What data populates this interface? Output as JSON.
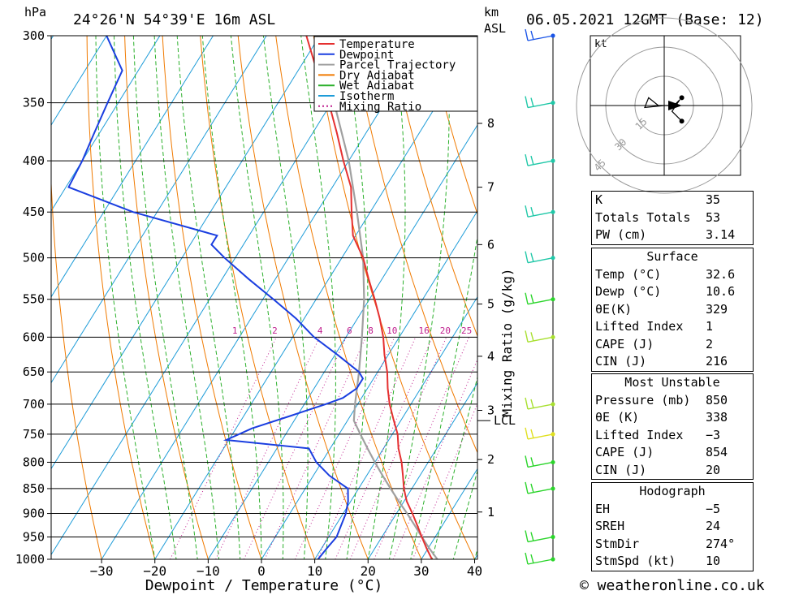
{
  "header": {
    "location": "24°26'N 54°39'E 16m ASL",
    "datetime": "06.05.2021 12GMT (Base: 12)",
    "hpa_label": "hPa",
    "km_label": "km",
    "asl_label": "ASL"
  },
  "footer": {
    "credit": "© weatheronline.co.uk"
  },
  "chart_data": {
    "type": "skew-t",
    "xlabel": "Dewpoint / Temperature (°C)",
    "ylabel": "hPa",
    "mixing_ratio_axis_label": "Mixing Ratio (g/kg)",
    "pressure_levels": [
      300,
      350,
      400,
      450,
      500,
      550,
      600,
      650,
      700,
      750,
      800,
      850,
      900,
      950,
      1000
    ],
    "temperature_ticks": [
      -30,
      -20,
      -10,
      0,
      10,
      20,
      30,
      40
    ],
    "temperature_tick_labels": [
      "−30",
      "−20",
      "−10",
      "0",
      "10",
      "20",
      "30",
      "40"
    ],
    "km_levels": [
      {
        "km": 1,
        "p": 897
      },
      {
        "km": 2,
        "p": 795
      },
      {
        "km": 3,
        "p": 710
      },
      {
        "km": 4,
        "p": 627
      },
      {
        "km": 5,
        "p": 556
      },
      {
        "km": 6,
        "p": 485
      },
      {
        "km": 7,
        "p": 425
      },
      {
        "km": 8,
        "p": 367
      }
    ],
    "lcl": {
      "label": "LCL",
      "p": 727
    },
    "mixing_ratio_labels": [
      {
        "label": "1",
        "x": -5
      },
      {
        "label": "2",
        "x": 2.5
      },
      {
        "label": "4",
        "x": 11
      },
      {
        "label": "6",
        "x": 16.5
      },
      {
        "label": "8",
        "x": 20.5
      },
      {
        "label": "10",
        "x": 24.5
      },
      {
        "label": "16",
        "x": 30.5
      },
      {
        "label": "20",
        "x": 34.5
      },
      {
        "label": "25",
        "x": 38.5
      }
    ],
    "legend": [
      {
        "label": "Temperature",
        "color": "#e53030",
        "style": "solid"
      },
      {
        "label": "Dewpoint",
        "color": "#1a3ee0",
        "style": "solid"
      },
      {
        "label": "Parcel Trajectory",
        "color": "#a0a0a0",
        "style": "solid"
      },
      {
        "label": "Dry Adiabat",
        "color": "#f07a00",
        "style": "solid"
      },
      {
        "label": "Wet Adiabat",
        "color": "#2bb02b",
        "style": "solid"
      },
      {
        "label": "Isotherm",
        "color": "#1e9cd8",
        "style": "solid"
      },
      {
        "label": "Mixing Ratio",
        "color": "#c0208f",
        "style": "dotted"
      }
    ],
    "series": {
      "temperature": [
        [
          1000,
          32
        ],
        [
          975,
          29.7
        ],
        [
          950,
          27.5
        ],
        [
          925,
          25.3
        ],
        [
          900,
          23
        ],
        [
          875,
          20.5
        ],
        [
          850,
          18.5
        ],
        [
          825,
          16.8
        ],
        [
          800,
          15
        ],
        [
          775,
          12.8
        ],
        [
          750,
          11
        ],
        [
          725,
          8.5
        ],
        [
          700,
          6
        ],
        [
          675,
          3.8
        ],
        [
          650,
          1.8
        ],
        [
          625,
          -0.7
        ],
        [
          600,
          -3
        ],
        [
          575,
          -5.8
        ],
        [
          550,
          -9
        ],
        [
          525,
          -12.5
        ],
        [
          500,
          -16
        ],
        [
          475,
          -20.5
        ],
        [
          450,
          -23.5
        ],
        [
          425,
          -26.5
        ],
        [
          400,
          -31
        ],
        [
          375,
          -35.5
        ],
        [
          350,
          -40.5
        ],
        [
          325,
          -46.5
        ],
        [
          300,
          -52.5
        ]
      ],
      "dewpoint": [
        [
          1000,
          10.6
        ],
        [
          975,
          11
        ],
        [
          950,
          11.5
        ],
        [
          925,
          11
        ],
        [
          900,
          10.5
        ],
        [
          875,
          9.5
        ],
        [
          850,
          8
        ],
        [
          825,
          3
        ],
        [
          800,
          -1
        ],
        [
          775,
          -4
        ],
        [
          760,
          -20.5
        ],
        [
          740,
          -17
        ],
        [
          720,
          -11.5
        ],
        [
          700,
          -6
        ],
        [
          690,
          -3.5
        ],
        [
          675,
          -2
        ],
        [
          660,
          -2
        ],
        [
          650,
          -3.5
        ],
        [
          625,
          -9.5
        ],
        [
          600,
          -16
        ],
        [
          575,
          -21.5
        ],
        [
          550,
          -28
        ],
        [
          525,
          -35
        ],
        [
          500,
          -42
        ],
        [
          485,
          -46
        ],
        [
          475,
          -46
        ],
        [
          450,
          -64.5
        ],
        [
          425,
          -79.5
        ],
        [
          400,
          -80
        ],
        [
          375,
          -81
        ],
        [
          350,
          -82
        ],
        [
          325,
          -83
        ],
        [
          300,
          -90
        ]
      ],
      "parcel": [
        [
          1000,
          33
        ],
        [
          975,
          30.2
        ],
        [
          950,
          27.5
        ],
        [
          925,
          24.8
        ],
        [
          900,
          22
        ],
        [
          875,
          19
        ],
        [
          850,
          16
        ],
        [
          825,
          13
        ],
        [
          800,
          10
        ],
        [
          775,
          7
        ],
        [
          750,
          4
        ],
        [
          727,
          1.2
        ],
        [
          700,
          -0.5
        ],
        [
          650,
          -3.5
        ],
        [
          600,
          -7
        ],
        [
          550,
          -11
        ],
        [
          500,
          -16
        ],
        [
          450,
          -22.5
        ],
        [
          400,
          -30
        ],
        [
          350,
          -39.5
        ],
        [
          300,
          -51
        ]
      ]
    },
    "wind_barbs": [
      {
        "p": 1000,
        "color": "#2bd52b"
      },
      {
        "p": 950,
        "color": "#2bd52b"
      },
      {
        "p": 850,
        "color": "#2bd52b"
      },
      {
        "p": 800,
        "color": "#2bd52b"
      },
      {
        "p": 750,
        "color": "#e0e020"
      },
      {
        "p": 700,
        "color": "#a8e030"
      },
      {
        "p": 600,
        "color": "#a8e030"
      },
      {
        "p": 550,
        "color": "#2bd52b"
      },
      {
        "p": 500,
        "color": "#20c8a8"
      },
      {
        "p": 450,
        "color": "#20c8a8"
      },
      {
        "p": 400,
        "color": "#20c8a8"
      },
      {
        "p": 350,
        "color": "#20c8a8"
      },
      {
        "p": 300,
        "color": "#1a55e8"
      }
    ],
    "hodograph": {
      "unit_label": "kt",
      "ring_labels": [
        "15",
        "30",
        "45"
      ],
      "trace": [
        [
          0,
          0
        ],
        [
          -10,
          -1
        ],
        [
          -8,
          4
        ],
        [
          -3,
          0
        ],
        [
          5,
          0
        ],
        [
          8,
          3
        ],
        [
          4,
          -3
        ],
        [
          9,
          -8
        ]
      ]
    }
  },
  "indices": {
    "basic": [
      {
        "label": "K",
        "value": "35"
      },
      {
        "label": "Totals Totals",
        "value": "53"
      },
      {
        "label": "PW (cm)",
        "value": "3.14"
      }
    ],
    "surface": {
      "title": "Surface",
      "rows": [
        {
          "label": "Temp (°C)",
          "value": "32.6"
        },
        {
          "label": "Dewp (°C)",
          "value": "10.6"
        },
        {
          "label": "θE(K)",
          "value": "329"
        },
        {
          "label": "Lifted Index",
          "value": "1"
        },
        {
          "label": "CAPE (J)",
          "value": "2"
        },
        {
          "label": "CIN (J)",
          "value": "216"
        }
      ]
    },
    "most_unstable": {
      "title": "Most Unstable",
      "rows": [
        {
          "label": "Pressure (mb)",
          "value": "850"
        },
        {
          "label": "θE (K)",
          "value": "338"
        },
        {
          "label": "Lifted Index",
          "value": "−3"
        },
        {
          "label": "CAPE (J)",
          "value": "854"
        },
        {
          "label": "CIN (J)",
          "value": "20"
        }
      ]
    },
    "hodograph": {
      "title": "Hodograph",
      "rows": [
        {
          "label": "EH",
          "value": "−5"
        },
        {
          "label": "SREH",
          "value": "24"
        },
        {
          "label": "StmDir",
          "value": "274°"
        },
        {
          "label": "StmSpd (kt)",
          "value": "10"
        }
      ]
    }
  }
}
